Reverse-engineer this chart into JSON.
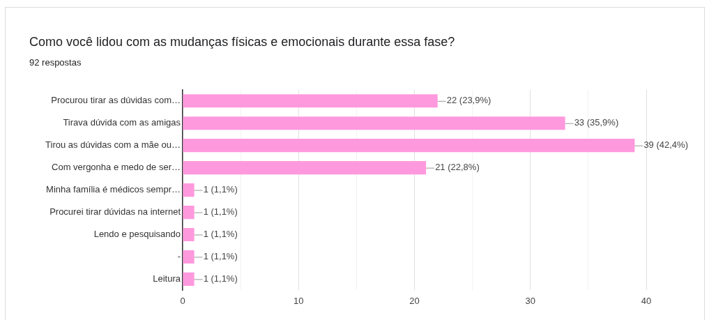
{
  "chart_data": {
    "type": "bar",
    "orientation": "horizontal",
    "title": "Como você lidou com as mudanças físicas e emocionais durante essa fase?",
    "subtitle": "92 respostas",
    "categories": [
      "Procurou tirar as dúvidas com…",
      "Tirava dúvida com as amigas",
      "Tirou as dúvidas com a mãe ou…",
      "Com vergonha e medo de ser…",
      "Minha família é médicos sempr…",
      "Procurei tirar dúvidas na internet",
      "Lendo e pesquisando",
      "-",
      "Leitura"
    ],
    "values": [
      22,
      33,
      39,
      21,
      1,
      1,
      1,
      1,
      1
    ],
    "value_labels": [
      "22 (23,9%)",
      "33 (35,9%)",
      "39 (42,4%)",
      "21 (22,8%)",
      "1 (1,1%)",
      "1 (1,1%)",
      "1 (1,1%)",
      "1 (1,1%)",
      "1 (1,1%)"
    ],
    "color": "#ff99dd",
    "xlim": [
      0,
      40
    ],
    "xticks": [
      0,
      {
        "value": 5,
        "label": null
      },
      10,
      {
        "value": 15,
        "label": null
      },
      20,
      {
        "value": 25,
        "label": null
      },
      30,
      {
        "value": 35,
        "label": null
      },
      40
    ],
    "grid": "x",
    "legend": false
  }
}
